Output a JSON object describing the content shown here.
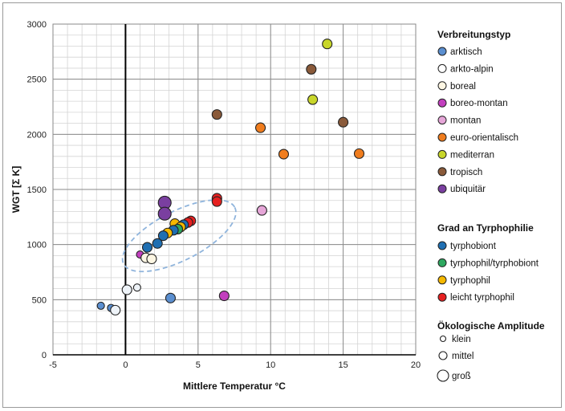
{
  "chart_data": {
    "type": "scatter",
    "xlabel": "Mittlere Temperatur °C",
    "ylabel": "WGT  [Σ K]",
    "xlim": [
      -5,
      20
    ],
    "ylim": [
      0,
      3000
    ],
    "x_ticks": [
      "-5",
      "0",
      "5",
      "10",
      "15",
      "20"
    ],
    "y_ticks": [
      "0",
      "500",
      "1000",
      "1500",
      "2000",
      "2500",
      "3000"
    ],
    "grid": true,
    "legend_placement": "right",
    "legend": {
      "verbreitung_title": "Verbreitungstyp",
      "verbreitung": [
        {
          "label": "arktisch",
          "color": "#5b8fd0"
        },
        {
          "label": "arkto-alpin",
          "color": "#ffffff"
        },
        {
          "label": "boreal",
          "color": "#fdf6e3"
        },
        {
          "label": "boreo-montan",
          "color": "#c23fbe"
        },
        {
          "label": "montan",
          "color": "#e6a6d8"
        },
        {
          "label": "euro-orientalisch",
          "color": "#f07d1e"
        },
        {
          "label": "mediterran",
          "color": "#c8d62a"
        },
        {
          "label": "tropisch",
          "color": "#8a5a3a"
        },
        {
          "label": "ubiquitär",
          "color": "#7a3fa0"
        }
      ],
      "tyrphophilie_title": "Grad an Tyrphophilie",
      "tyrphophilie": [
        {
          "label": "tyrphobiont",
          "color": "#1f6fb2"
        },
        {
          "label": "tyrphophil/tyrphobiont",
          "color": "#2ea860"
        },
        {
          "label": "tyrphophil",
          "color": "#f5b800"
        },
        {
          "label": "leicht tyrphophil",
          "color": "#e62020"
        }
      ],
      "amplitude_title": "Ökologische Amplitude",
      "amplitude": [
        {
          "label": "klein",
          "size": "small"
        },
        {
          "label": "mittel",
          "size": "medium"
        },
        {
          "label": "groß",
          "size": "large"
        }
      ]
    },
    "points": [
      {
        "x": 13.9,
        "y": 2820,
        "color": "#c8d62a",
        "size": "medium"
      },
      {
        "x": 12.8,
        "y": 2590,
        "color": "#8a5a3a",
        "size": "medium"
      },
      {
        "x": 12.9,
        "y": 2315,
        "color": "#c8d62a",
        "size": "medium"
      },
      {
        "x": 6.3,
        "y": 2180,
        "color": "#8a5a3a",
        "size": "medium"
      },
      {
        "x": 9.3,
        "y": 2060,
        "color": "#f07d1e",
        "size": "medium"
      },
      {
        "x": 15.0,
        "y": 2110,
        "color": "#8a5a3a",
        "size": "medium"
      },
      {
        "x": 10.9,
        "y": 1820,
        "color": "#f07d1e",
        "size": "medium"
      },
      {
        "x": 16.1,
        "y": 1825,
        "color": "#f07d1e",
        "size": "medium"
      },
      {
        "x": 6.3,
        "y": 1420,
        "color": "#e62020",
        "size": "medium"
      },
      {
        "x": 6.3,
        "y": 1390,
        "color": "#e62020",
        "size": "medium"
      },
      {
        "x": 9.4,
        "y": 1310,
        "color": "#e6a6d8",
        "size": "medium"
      },
      {
        "x": 2.7,
        "y": 1380,
        "color": "#7a3fa0",
        "size": "large"
      },
      {
        "x": 2.7,
        "y": 1280,
        "color": "#7a3fa0",
        "size": "large"
      },
      {
        "x": 4.5,
        "y": 1215,
        "color": "#e62020",
        "size": "medium"
      },
      {
        "x": 4.3,
        "y": 1200,
        "color": "#e62020",
        "size": "medium"
      },
      {
        "x": 4.0,
        "y": 1180,
        "color": "#1f6fb2",
        "size": "medium"
      },
      {
        "x": 3.4,
        "y": 1190,
        "color": "#f5b800",
        "size": "medium"
      },
      {
        "x": 3.8,
        "y": 1160,
        "color": "#f5b800",
        "size": "medium"
      },
      {
        "x": 3.6,
        "y": 1140,
        "color": "#2ea860",
        "size": "medium"
      },
      {
        "x": 3.3,
        "y": 1130,
        "color": "#1f6fb2",
        "size": "medium"
      },
      {
        "x": 2.9,
        "y": 1105,
        "color": "#f5b800",
        "size": "medium"
      },
      {
        "x": 2.6,
        "y": 1080,
        "color": "#1f6fb2",
        "size": "medium"
      },
      {
        "x": 2.2,
        "y": 1010,
        "color": "#1f6fb2",
        "size": "medium"
      },
      {
        "x": 1.5,
        "y": 975,
        "color": "#1f6fb2",
        "size": "medium"
      },
      {
        "x": 1.0,
        "y": 910,
        "color": "#c23fbe",
        "size": "small"
      },
      {
        "x": 1.4,
        "y": 880,
        "color": "#fdf6e3",
        "size": "medium"
      },
      {
        "x": 1.8,
        "y": 870,
        "color": "#fdf6e3",
        "size": "medium"
      },
      {
        "x": 0.1,
        "y": 590,
        "color": "#eef3f8",
        "size": "medium"
      },
      {
        "x": 0.8,
        "y": 610,
        "color": "#eef3f8",
        "size": "small"
      },
      {
        "x": 3.1,
        "y": 515,
        "color": "#5b8fd0",
        "size": "medium"
      },
      {
        "x": 6.8,
        "y": 535,
        "color": "#c23fbe",
        "size": "medium"
      },
      {
        "x": -1.7,
        "y": 445,
        "color": "#5b8fd0",
        "size": "small"
      },
      {
        "x": -1.0,
        "y": 425,
        "color": "#5b8fd0",
        "size": "small"
      },
      {
        "x": -0.7,
        "y": 405,
        "color": "#eef3f8",
        "size": "medium"
      }
    ],
    "cluster_ellipse": {
      "cx": 3.7,
      "cy": 1080,
      "rx": 4.3,
      "ry": 150,
      "angle_deg": -27,
      "style": "dashed",
      "color": "#8fb4dc"
    }
  }
}
